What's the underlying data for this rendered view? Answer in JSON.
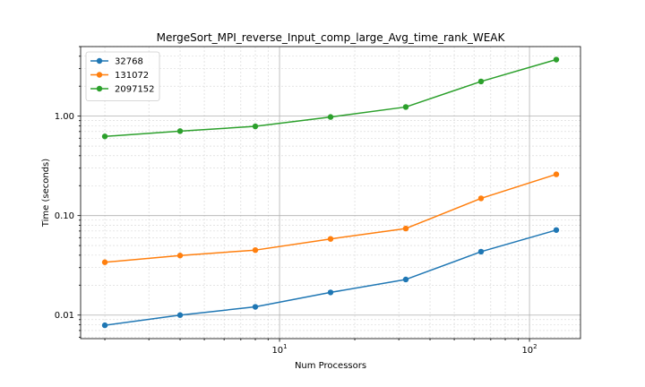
{
  "chart_data": {
    "type": "line",
    "title": "MergeSort_MPI_reverse_Input_comp_large_Avg_time_rank_WEAK",
    "xlabel": "Num Processors",
    "ylabel": "Time (seconds)",
    "xscale": "log",
    "yscale": "log",
    "xlim": [
      1.6,
      160
    ],
    "ylim": [
      0.0058,
      5.0
    ],
    "x": [
      2,
      4,
      8,
      16,
      32,
      64,
      128
    ],
    "xticks": [
      {
        "value": 10,
        "base": "10",
        "exp": "1"
      },
      {
        "value": 100,
        "base": "10",
        "exp": "2"
      }
    ],
    "yticks": [
      {
        "value": 0.01,
        "label": "0.01"
      },
      {
        "value": 0.1,
        "label": "0.10"
      },
      {
        "value": 1.0,
        "label": "1.00"
      }
    ],
    "grid": true,
    "legend_position": "top-left",
    "series": [
      {
        "name": "32768",
        "color": "#1f77b4",
        "values": [
          0.0079,
          0.01,
          0.0121,
          0.0169,
          0.0228,
          0.0434,
          0.0716
        ]
      },
      {
        "name": "131072",
        "color": "#ff7f0e",
        "values": [
          0.034,
          0.0397,
          0.045,
          0.0583,
          0.0742,
          0.149,
          0.26
        ]
      },
      {
        "name": "2097152",
        "color": "#2ca02c",
        "values": [
          0.625,
          0.707,
          0.789,
          0.98,
          1.235,
          2.23,
          3.7
        ]
      }
    ]
  }
}
